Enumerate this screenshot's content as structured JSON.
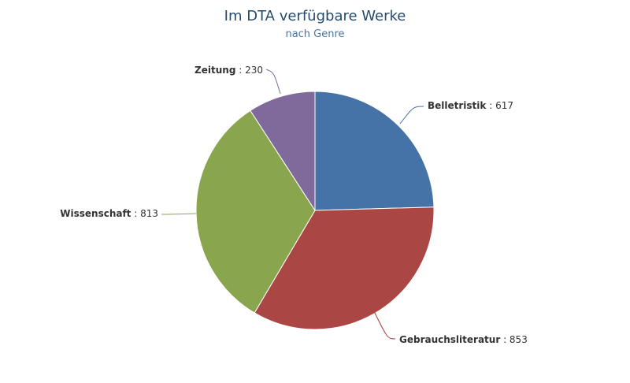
{
  "chart_data": {
    "type": "pie",
    "title": "Im DTA verfügbare Werke",
    "subtitle": "nach Genre",
    "separator": " : ",
    "slices": [
      {
        "label": "Belletristik",
        "value": 617,
        "color": "#4572a7"
      },
      {
        "label": "Gebrauchsliteratur",
        "value": 853,
        "color": "#aa4643"
      },
      {
        "label": "Wissenschaft",
        "value": 813,
        "color": "#89a54e"
      },
      {
        "label": "Zeitung",
        "value": 230,
        "color": "#80699b"
      }
    ]
  }
}
